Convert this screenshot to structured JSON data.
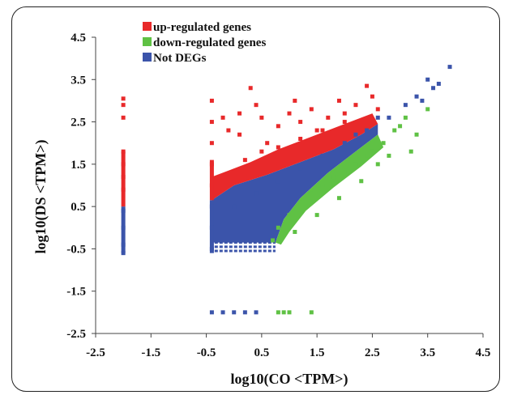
{
  "chart_data": {
    "type": "scatter",
    "title": "",
    "xlabel": "log10(CO <TPM>)",
    "ylabel": "log10(DS <TPM>)",
    "xlim": [
      -2.5,
      4.5
    ],
    "ylim": [
      -2.5,
      4.5
    ],
    "x_ticks": [
      "-2.5",
      "-1.5",
      "-0.5",
      "0.5",
      "1.5",
      "2.5",
      "3.5",
      "4.5"
    ],
    "y_ticks": [
      "-2.5",
      "-1.5",
      "-0.5",
      "0.5",
      "1.5",
      "2.5",
      "3.5",
      "4.5"
    ],
    "legend_position": "top-left",
    "grid": false,
    "series": [
      {
        "name": "up-regulated genes",
        "color": "#e8292a",
        "points": [
          [
            -2.0,
            3.05
          ],
          [
            -2.0,
            2.9
          ],
          [
            -2.0,
            2.6
          ],
          [
            -2.0,
            1.8
          ],
          [
            -2.0,
            1.5
          ],
          [
            -2.0,
            1.2
          ],
          [
            -2.0,
            0.9
          ],
          [
            -0.4,
            3.0
          ],
          [
            -0.4,
            2.5
          ],
          [
            -0.4,
            2.0
          ],
          [
            -0.4,
            1.5
          ],
          [
            -0.4,
            1.0
          ],
          [
            -0.2,
            2.6
          ],
          [
            -0.1,
            2.3
          ],
          [
            0.1,
            2.7
          ],
          [
            0.1,
            2.2
          ],
          [
            0.3,
            3.3
          ],
          [
            0.4,
            2.9
          ],
          [
            0.5,
            2.6
          ],
          [
            0.6,
            2.0
          ],
          [
            0.8,
            2.4
          ],
          [
            1.0,
            2.7
          ],
          [
            1.1,
            3.0
          ],
          [
            1.2,
            2.5
          ],
          [
            1.4,
            2.8
          ],
          [
            1.5,
            2.3
          ],
          [
            1.7,
            2.6
          ],
          [
            1.9,
            3.0
          ],
          [
            2.0,
            2.7
          ],
          [
            2.2,
            2.9
          ],
          [
            2.4,
            3.35
          ],
          [
            2.5,
            3.1
          ],
          [
            2.6,
            2.8
          ],
          [
            0.2,
            1.6
          ],
          [
            0.5,
            1.8
          ],
          [
            0.8,
            1.9
          ],
          [
            1.2,
            2.1
          ],
          [
            1.6,
            2.3
          ],
          [
            2.0,
            2.5
          ]
        ]
      },
      {
        "name": "down-regulated genes",
        "color": "#5fc144",
        "points": [
          [
            0.7,
            -0.3
          ],
          [
            0.8,
            -2.0
          ],
          [
            0.9,
            -2.0
          ],
          [
            1.0,
            -2.0
          ],
          [
            1.4,
            -2.0
          ],
          [
            0.8,
            0.0
          ],
          [
            1.0,
            0.3
          ],
          [
            1.2,
            0.6
          ],
          [
            1.4,
            0.8
          ],
          [
            1.6,
            1.0
          ],
          [
            1.8,
            1.2
          ],
          [
            2.0,
            1.3
          ],
          [
            2.2,
            1.5
          ],
          [
            2.4,
            1.7
          ],
          [
            2.5,
            1.9
          ],
          [
            2.7,
            2.0
          ],
          [
            2.9,
            2.3
          ],
          [
            3.1,
            2.6
          ],
          [
            3.2,
            1.8
          ],
          [
            3.3,
            2.2
          ],
          [
            3.5,
            2.8
          ],
          [
            1.1,
            -0.1
          ],
          [
            1.5,
            0.3
          ],
          [
            1.9,
            0.7
          ],
          [
            2.3,
            1.1
          ],
          [
            2.6,
            1.5
          ],
          [
            2.8,
            1.7
          ],
          [
            3.0,
            2.4
          ]
        ]
      },
      {
        "name": "Not DEGs",
        "color": "#3b54aa",
        "points": [
          [
            -2.0,
            0.4
          ],
          [
            -2.0,
            0.0
          ],
          [
            -2.0,
            -0.4
          ],
          [
            -2.0,
            -0.6
          ],
          [
            -0.4,
            0.5
          ],
          [
            -0.4,
            0.0
          ],
          [
            -0.4,
            -0.5
          ],
          [
            -0.4,
            -2.0
          ],
          [
            -0.2,
            -2.0
          ],
          [
            0.0,
            -2.0
          ],
          [
            0.2,
            -2.0
          ],
          [
            0.4,
            -2.0
          ],
          [
            0.0,
            0.5
          ],
          [
            0.4,
            0.8
          ],
          [
            0.8,
            1.1
          ],
          [
            1.2,
            1.4
          ],
          [
            1.6,
            1.7
          ],
          [
            2.0,
            2.0
          ],
          [
            2.4,
            2.3
          ],
          [
            2.8,
            2.6
          ],
          [
            3.1,
            2.9
          ],
          [
            3.3,
            3.1
          ],
          [
            3.5,
            3.5
          ],
          [
            3.6,
            3.3
          ],
          [
            3.9,
            3.8
          ],
          [
            3.7,
            3.4
          ],
          [
            2.6,
            2.6
          ],
          [
            2.2,
            2.2
          ],
          [
            3.4,
            3.0
          ]
        ]
      }
    ]
  }
}
